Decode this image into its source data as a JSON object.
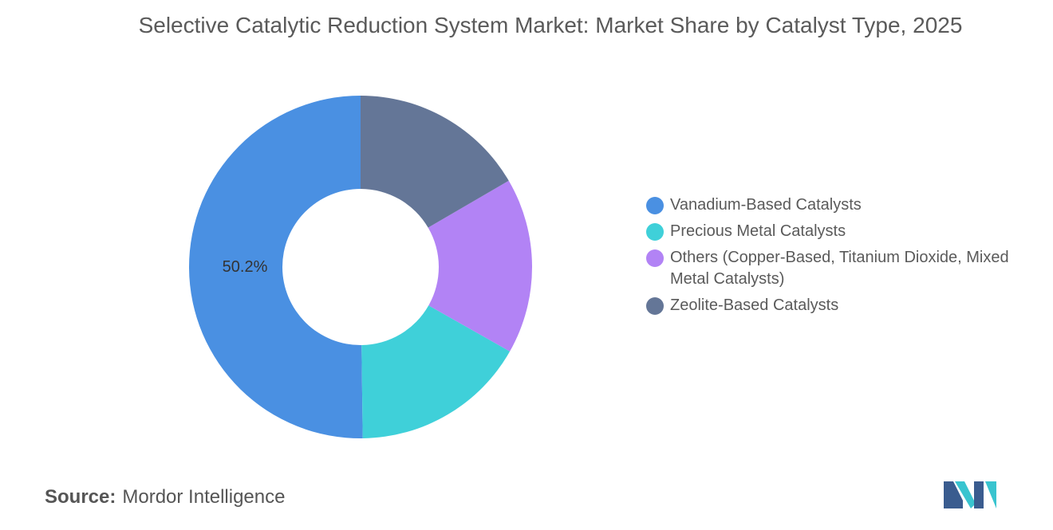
{
  "chart_data": {
    "type": "donut",
    "title": "Selective Catalytic Reduction System Market: Market Share by Catalyst Type, 2025",
    "categories": [
      "Vanadium-Based Catalysts",
      "Precious Metal Catalysts",
      "Others (Copper-Based, Titanium Dioxide, Mixed Metal Catalysts)",
      "Zeolite-Based Catalysts"
    ],
    "values": [
      50.2,
      16.6,
      16.6,
      16.6
    ],
    "value_labels": [
      "50.2%",
      null,
      null,
      null
    ],
    "colors": [
      "#4a90e2",
      "#3fd0d9",
      "#b283f5",
      "#647697"
    ],
    "source_label": "Source:",
    "source": "Mordor Intelligence"
  }
}
